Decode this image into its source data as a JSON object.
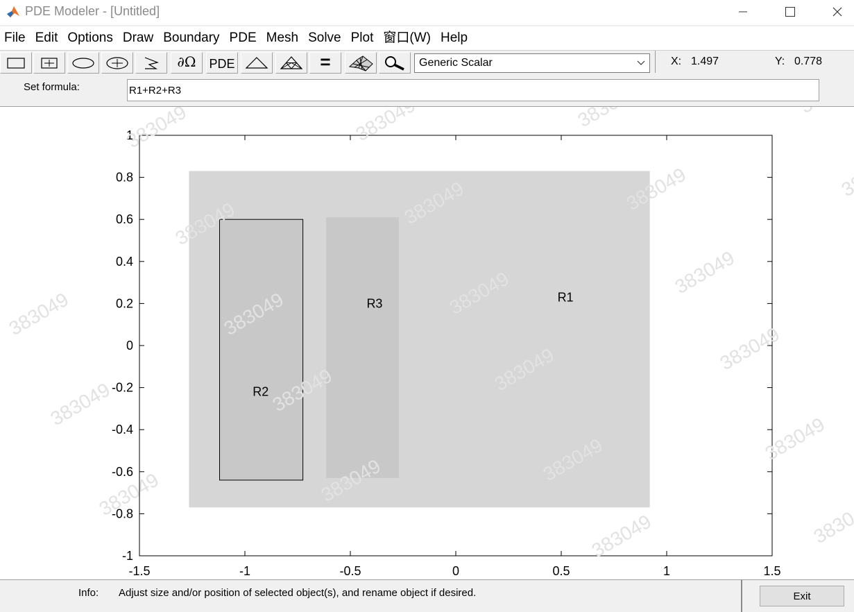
{
  "window": {
    "title": "PDE Modeler - [Untitled]",
    "icons": [
      "matlab-app-icon",
      "minimize-icon",
      "maximize-icon",
      "close-icon"
    ]
  },
  "menu": [
    "File",
    "Edit",
    "Options",
    "Draw",
    "Boundary",
    "PDE",
    "Mesh",
    "Solve",
    "Plot",
    "窗口(W)",
    "Help"
  ],
  "toolbar": {
    "buttons": [
      "rectangle-icon",
      "rectangle-centered-icon",
      "ellipse-icon",
      "ellipse-centered-icon",
      "polygon-icon",
      "boundary-mode-icon",
      "pde-specification-icon",
      "init-mesh-icon",
      "refine-mesh-icon",
      "solve-icon",
      "plot-icon",
      "zoom-icon"
    ],
    "boundary_label": "∂Ω",
    "pde_label": "PDE",
    "solve_label": "=",
    "application_mode": "Generic Scalar",
    "coords": {
      "x_label": "X:",
      "x_value": "1.497",
      "y_label": "Y:",
      "y_value": "0.778"
    }
  },
  "formula": {
    "label": "Set formula:",
    "value": "R1+R2+R3"
  },
  "plot": {
    "xlim": [
      -1.5,
      1.5
    ],
    "ylim": [
      -1,
      1
    ],
    "xticks": [
      "-1.5",
      "-1",
      "-0.5",
      "0",
      "0.5",
      "1",
      "1.5"
    ],
    "yticks": [
      "1",
      "0.8",
      "0.6",
      "0.4",
      "0.2",
      "0",
      "-0.2",
      "-0.4",
      "-0.6",
      "-0.8",
      "-1"
    ],
    "shapes": [
      {
        "name": "R1",
        "x1": -1.265,
        "x2": 0.92,
        "y1": -0.77,
        "y2": 0.83,
        "fill": "#d6d6d6",
        "outlined": false
      },
      {
        "name": "R2",
        "x1": -1.12,
        "x2": -0.725,
        "y1": -0.64,
        "y2": 0.6,
        "fill": "#c8c8c8",
        "outlined": true
      },
      {
        "name": "R3",
        "x1": -0.615,
        "x2": -0.27,
        "y1": -0.63,
        "y2": 0.61,
        "fill": "#c8c8c8",
        "outlined": false
      }
    ],
    "labels": [
      {
        "text": "R1",
        "x": 0.52,
        "y": 0.21
      },
      {
        "text": "R2",
        "x": -0.925,
        "y": -0.24
      },
      {
        "text": "R3",
        "x": -0.385,
        "y": 0.18
      }
    ]
  },
  "watermark": {
    "text": "383049",
    "color": "#e2e2e2"
  },
  "status": {
    "info_label": "Info:",
    "info_text": "Adjust size and/or position of selected object(s), and rename object if desired.",
    "exit_label": "Exit"
  }
}
